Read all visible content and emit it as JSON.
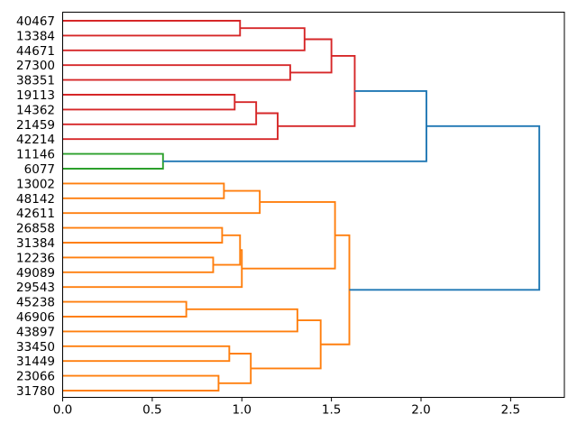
{
  "chart_data": {
    "type": "dendrogram",
    "orientation": "left-labels-root-right",
    "title": "",
    "xlabel": "",
    "ylabel": "",
    "x_axis": {
      "ticks": [
        "0.0",
        "0.5",
        "1.0",
        "1.5",
        "2.0",
        "2.5"
      ],
      "tick_values": [
        0,
        0.5,
        1.0,
        1.5,
        2.0,
        2.5
      ],
      "lim": [
        0,
        2.8
      ]
    },
    "grid": false,
    "legend": false,
    "leaves": [
      "40467",
      "13384",
      "44671",
      "27300",
      "38351",
      "19113",
      "14362",
      "21459",
      "42214",
      "11146",
      "6077",
      "13002",
      "48142",
      "42611",
      "26858",
      "31384",
      "12236",
      "49089",
      "29543",
      "45238",
      "46906",
      "43897",
      "33450",
      "31449",
      "23066",
      "31780"
    ],
    "colors": {
      "blue": "#1f77b4",
      "red": "#d62728",
      "green": "#2ca02c",
      "orange": "#ff7f0e",
      "frame": "#000000",
      "text": "#000000"
    },
    "tree": {
      "d": 2.66,
      "color": "blue",
      "children": [
        {
          "d": 2.03,
          "color": "blue",
          "children": [
            {
              "d": 1.63,
              "color": "red",
              "children": [
                {
                  "d": 1.5,
                  "color": "red",
                  "children": [
                    {
                      "d": 1.35,
                      "color": "red",
                      "children": [
                        {
                          "d": 0.99,
                          "color": "red",
                          "children": [
                            {
                              "leaf": "40467"
                            },
                            {
                              "leaf": "13384"
                            }
                          ]
                        },
                        {
                          "leaf": "44671"
                        }
                      ]
                    },
                    {
                      "d": 1.27,
                      "color": "red",
                      "children": [
                        {
                          "leaf": "27300"
                        },
                        {
                          "leaf": "38351"
                        }
                      ]
                    }
                  ]
                },
                {
                  "d": 1.2,
                  "color": "red",
                  "children": [
                    {
                      "d": 1.08,
                      "color": "red",
                      "children": [
                        {
                          "d": 0.96,
                          "color": "red",
                          "children": [
                            {
                              "leaf": "19113"
                            },
                            {
                              "leaf": "14362"
                            }
                          ]
                        },
                        {
                          "leaf": "21459"
                        }
                      ]
                    },
                    {
                      "leaf": "42214"
                    }
                  ]
                }
              ]
            },
            {
              "d": 0.56,
              "color": "green",
              "children": [
                {
                  "leaf": "11146"
                },
                {
                  "leaf": "6077"
                }
              ]
            }
          ]
        },
        {
          "d": 1.6,
          "color": "orange",
          "children": [
            {
              "d": 1.52,
              "color": "orange",
              "children": [
                {
                  "d": 1.1,
                  "color": "orange",
                  "children": [
                    {
                      "d": 0.9,
                      "color": "orange",
                      "children": [
                        {
                          "leaf": "13002"
                        },
                        {
                          "leaf": "48142"
                        }
                      ]
                    },
                    {
                      "leaf": "42611"
                    }
                  ]
                },
                {
                  "d": 1.0,
                  "color": "orange",
                  "children": [
                    {
                      "d": 0.99,
                      "color": "orange",
                      "children": [
                        {
                          "d": 0.89,
                          "color": "orange",
                          "children": [
                            {
                              "leaf": "26858"
                            },
                            {
                              "leaf": "31384"
                            }
                          ]
                        },
                        {
                          "d": 0.84,
                          "color": "orange",
                          "children": [
                            {
                              "leaf": "12236"
                            },
                            {
                              "leaf": "49089"
                            }
                          ]
                        }
                      ]
                    },
                    {
                      "leaf": "29543"
                    }
                  ]
                }
              ]
            },
            {
              "d": 1.44,
              "color": "orange",
              "children": [
                {
                  "d": 1.31,
                  "color": "orange",
                  "children": [
                    {
                      "d": 0.69,
                      "color": "orange",
                      "children": [
                        {
                          "leaf": "45238"
                        },
                        {
                          "leaf": "46906"
                        }
                      ]
                    },
                    {
                      "leaf": "43897"
                    }
                  ]
                },
                {
                  "d": 1.05,
                  "color": "orange",
                  "children": [
                    {
                      "d": 0.93,
                      "color": "orange",
                      "children": [
                        {
                          "leaf": "33450"
                        },
                        {
                          "leaf": "31449"
                        }
                      ]
                    },
                    {
                      "d": 0.87,
                      "color": "orange",
                      "children": [
                        {
                          "leaf": "23066"
                        },
                        {
                          "leaf": "31780"
                        }
                      ]
                    }
                  ]
                }
              ]
            }
          ]
        }
      ]
    }
  }
}
